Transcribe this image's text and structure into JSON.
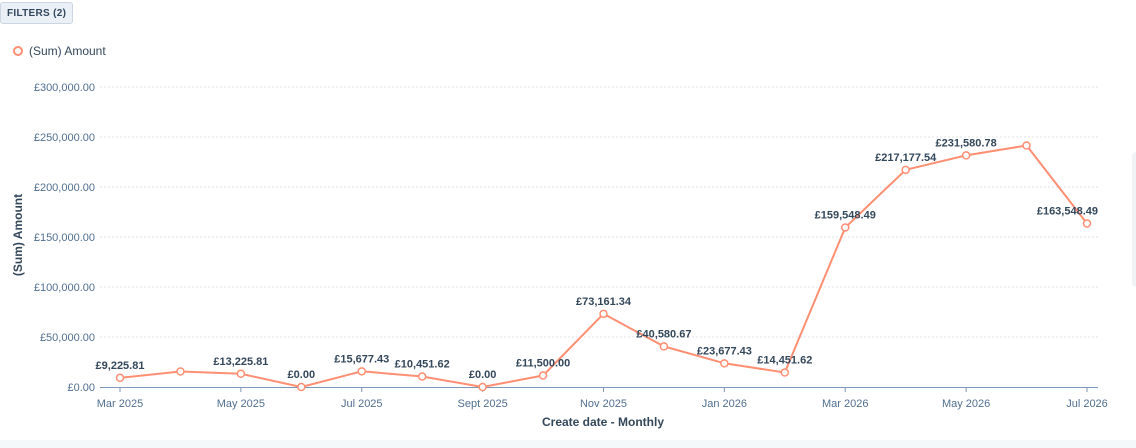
{
  "filters": {
    "label": "FILTERS (2)"
  },
  "chart_data": {
    "type": "line",
    "xlabel": "Create date - Monthly",
    "ylabel": "(Sum) Amount",
    "ylim": [
      0,
      300000
    ],
    "yticks": [
      {
        "value": 0,
        "label": "£0.00"
      },
      {
        "value": 50000,
        "label": "£50,000.00"
      },
      {
        "value": 100000,
        "label": "£100,000.00"
      },
      {
        "value": 150000,
        "label": "£150,000.00"
      },
      {
        "value": 200000,
        "label": "£200,000.00"
      },
      {
        "value": 250000,
        "label": "£250,000.00"
      },
      {
        "value": 300000,
        "label": "£300,000.00"
      }
    ],
    "grid": true,
    "legend_position": "top-left",
    "categories": [
      "Mar 2025",
      "Apr 2025",
      "May 2025",
      "Jun 2025",
      "Jul 2025",
      "Aug 2025",
      "Sept 2025",
      "Oct 2025",
      "Nov 2025",
      "Dec 2025",
      "Jan 2026",
      "Feb 2026",
      "Mar 2026",
      "Apr 2026",
      "May 2026",
      "Jun 2026",
      "Jul 2026"
    ],
    "tick_labels": [
      "Mar 2025",
      "",
      "May 2025",
      "",
      "Jul 2025",
      "",
      "Sept 2025",
      "",
      "Nov 2025",
      "",
      "Jan 2026",
      "",
      "Mar 2026",
      "",
      "May 2026",
      "",
      "Jul 2026"
    ],
    "series": [
      {
        "name": "(Sum) Amount",
        "color": "#ff8f73",
        "values": [
          9225.81,
          15500,
          13225.81,
          0,
          15677.43,
          10451.62,
          0,
          11500,
          73161.34,
          40580.67,
          23677.43,
          14451.62,
          159548.49,
          217177.54,
          231580.78,
          241500,
          163548.49
        ],
        "labels": [
          "£9,225.81",
          "",
          "£13,225.81",
          "£0.00",
          "£15,677.43",
          "£10,451.62",
          "£0.00",
          "£11,500.00",
          "£73,161.34",
          "£40,580.67",
          "£23,677.43",
          "£14,451.62",
          "£159,548.49",
          "£217,177.54",
          "£231,580.78",
          "",
          "£163,548.49"
        ]
      }
    ]
  }
}
